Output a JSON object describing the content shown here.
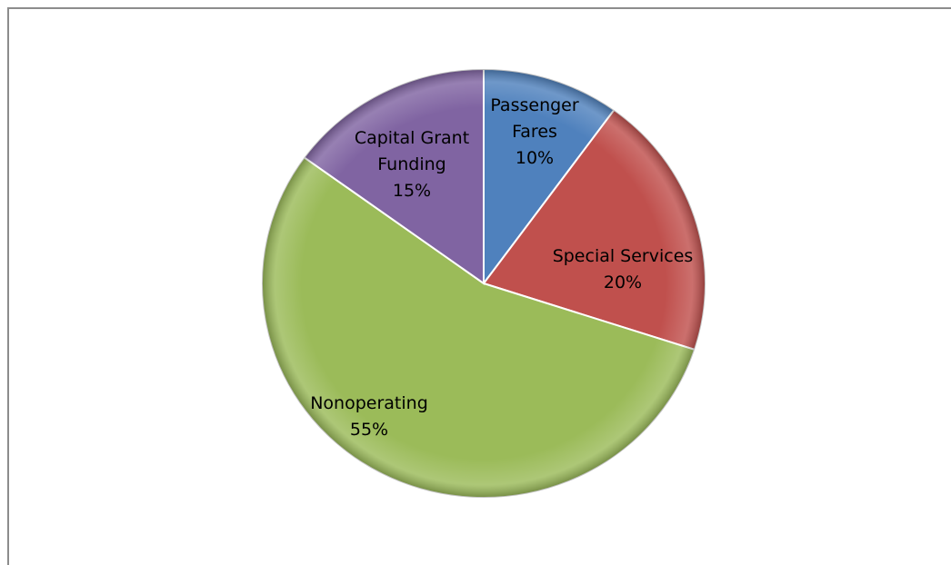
{
  "chart_data": {
    "type": "pie",
    "title": "",
    "slices": [
      {
        "label": "Passenger Fares",
        "label_lines": [
          "Passenger",
          "Fares"
        ],
        "percent_label": "10%",
        "value": 10,
        "color": "#4f81bd"
      },
      {
        "label": "Special Services",
        "label_lines": [
          "Special Services"
        ],
        "percent_label": "20%",
        "value": 20,
        "color": "#c0504d"
      },
      {
        "label": "Nonoperating",
        "label_lines": [
          "Nonoperating"
        ],
        "percent_label": "55%",
        "value": 55,
        "color": "#9bbb59"
      },
      {
        "label": "Capital Grant Funding",
        "label_lines": [
          "Capital Grant",
          "Funding"
        ],
        "percent_label": "15%",
        "value": 15,
        "color": "#8064a2"
      }
    ],
    "start_angle_deg": 0,
    "direction": "clockwise",
    "legend": "none",
    "data_labels": "inside"
  }
}
